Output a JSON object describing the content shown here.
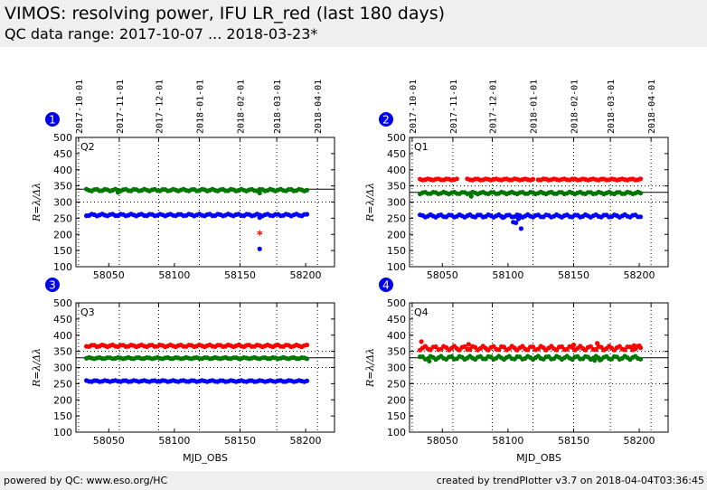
{
  "header": {
    "title": "VIMOS: resolving power, IFU LR_red (last 180 days)",
    "subtitle": "QC data range: 2017-10-07 ... 2018-03-23*"
  },
  "footer": {
    "left": "powered by QC: www.eso.org/HC",
    "right": "created by trendPlotter v3.7 on 2018-04-04T03:36:45"
  },
  "colors": {
    "red": "#ff0000",
    "green": "#007700",
    "blue": "#0000ff",
    "badge": "#0000ee"
  },
  "date_ticks": [
    {
      "label": "2017-10-01",
      "mjd": 58027
    },
    {
      "label": "2017-11-01",
      "mjd": 58058
    },
    {
      "label": "2017-12-01",
      "mjd": 58088
    },
    {
      "label": "2018-01-01",
      "mjd": 58119
    },
    {
      "label": "2018-02-01",
      "mjd": 58150
    },
    {
      "label": "2018-03-01",
      "mjd": 58178
    },
    {
      "label": "2018-04-01",
      "mjd": 58209
    }
  ],
  "chart_data": [
    {
      "type": "scatter",
      "badge": "1",
      "quadrant_label": "Q2",
      "ylabel": "R=λ/Δλ",
      "xlabel": "",
      "xlim": [
        58025,
        58222
      ],
      "ylim": [
        100,
        500
      ],
      "xticks": [
        58050,
        58100,
        58150,
        58200
      ],
      "yticks": [
        100,
        150,
        200,
        250,
        300,
        350,
        400,
        450,
        500
      ],
      "ref_lines": [
        {
          "y": 340,
          "style": "solid"
        },
        {
          "y": 300,
          "style": "dotted"
        }
      ],
      "series": [
        {
          "color": "green",
          "x_start": 58033,
          "x_end": 58201,
          "step": 2,
          "base": 337,
          "amp": 3,
          "outliers": [
            [
              58057,
              330
            ],
            [
              58165,
              328
            ]
          ]
        },
        {
          "color": "blue",
          "x_start": 58033,
          "x_end": 58201,
          "step": 2,
          "base": 260,
          "amp": 3,
          "outliers": [
            [
              58165,
              155
            ],
            [
              58165,
              252
            ]
          ]
        }
      ],
      "markers": [
        {
          "x": 58165,
          "y": 200,
          "color": "red",
          "symbol": "*"
        }
      ]
    },
    {
      "type": "scatter",
      "badge": "2",
      "quadrant_label": "Q1",
      "ylabel": "R=λ/Δλ",
      "xlabel": "",
      "xlim": [
        58025,
        58222
      ],
      "ylim": [
        100,
        500
      ],
      "xticks": [
        58050,
        58100,
        58150,
        58200
      ],
      "yticks": [
        100,
        150,
        200,
        250,
        300,
        350,
        400,
        450,
        500
      ],
      "ref_lines": [
        {
          "y": 330,
          "style": "solid"
        },
        {
          "y": 350,
          "style": "dotted"
        },
        {
          "y": 300,
          "style": "dotted"
        }
      ],
      "series": [
        {
          "color": "red",
          "x_start": 58033,
          "x_end": 58201,
          "step": 2,
          "base": 370,
          "amp": 2,
          "gaps": [
            [
              58063,
              58067
            ],
            [
              58120,
              58122
            ]
          ]
        },
        {
          "color": "green",
          "x_start": 58033,
          "x_end": 58201,
          "step": 2,
          "base": 328,
          "amp": 3,
          "outliers": [
            [
              58072,
              318
            ]
          ]
        },
        {
          "color": "blue",
          "x_start": 58033,
          "x_end": 58201,
          "step": 2,
          "base": 257,
          "amp": 4,
          "outliers": [
            [
              58104,
              238
            ],
            [
              58106,
              236
            ],
            [
              58108,
              248
            ],
            [
              58110,
              218
            ],
            [
              58096,
              252
            ]
          ]
        }
      ],
      "markers": []
    },
    {
      "type": "scatter",
      "badge": "3",
      "quadrant_label": "Q3",
      "ylabel": "R=λ/Δλ",
      "xlabel": "MJD_OBS",
      "xlim": [
        58025,
        58222
      ],
      "ylim": [
        100,
        500
      ],
      "xticks": [
        58050,
        58100,
        58150,
        58200
      ],
      "yticks": [
        100,
        150,
        200,
        250,
        300,
        350,
        400,
        450,
        500
      ],
      "ref_lines": [
        {
          "y": 330,
          "style": "solid"
        },
        {
          "y": 350,
          "style": "dotted"
        },
        {
          "y": 300,
          "style": "dotted"
        }
      ],
      "series": [
        {
          "color": "red",
          "x_start": 58033,
          "x_end": 58201,
          "step": 2,
          "base": 367,
          "amp": 3
        },
        {
          "color": "green",
          "x_start": 58033,
          "x_end": 58201,
          "step": 2,
          "base": 329,
          "amp": 2
        },
        {
          "color": "blue",
          "x_start": 58033,
          "x_end": 58201,
          "step": 2,
          "base": 258,
          "amp": 2
        }
      ],
      "markers": []
    },
    {
      "type": "scatter",
      "badge": "4",
      "quadrant_label": "Q4",
      "ylabel": "R=λ/Δλ",
      "xlabel": "MJD_OBS",
      "xlim": [
        58025,
        58222
      ],
      "ylim": [
        100,
        500
      ],
      "xticks": [
        58050,
        58100,
        58150,
        58200
      ],
      "yticks": [
        100,
        150,
        200,
        250,
        300,
        350,
        400,
        450,
        500
      ],
      "ref_lines": [
        {
          "y": 330,
          "style": "solid"
        },
        {
          "y": 350,
          "style": "dotted"
        },
        {
          "y": 250,
          "style": "dotted"
        }
      ],
      "series": [
        {
          "color": "red",
          "x_start": 58033,
          "x_end": 58201,
          "step": 2,
          "base": 360,
          "amp": 6,
          "outliers": [
            [
              58034,
              380
            ],
            [
              58070,
              372
            ],
            [
              58150,
              370
            ],
            [
              58168,
              375
            ],
            [
              58196,
              368
            ],
            [
              58200,
              367
            ]
          ]
        },
        {
          "color": "green",
          "x_start": 58033,
          "x_end": 58201,
          "step": 2,
          "base": 330,
          "amp": 5,
          "outliers": [
            [
              58040,
              320
            ],
            [
              58166,
              322
            ],
            [
              58170,
              323
            ]
          ]
        }
      ],
      "markers": []
    }
  ]
}
